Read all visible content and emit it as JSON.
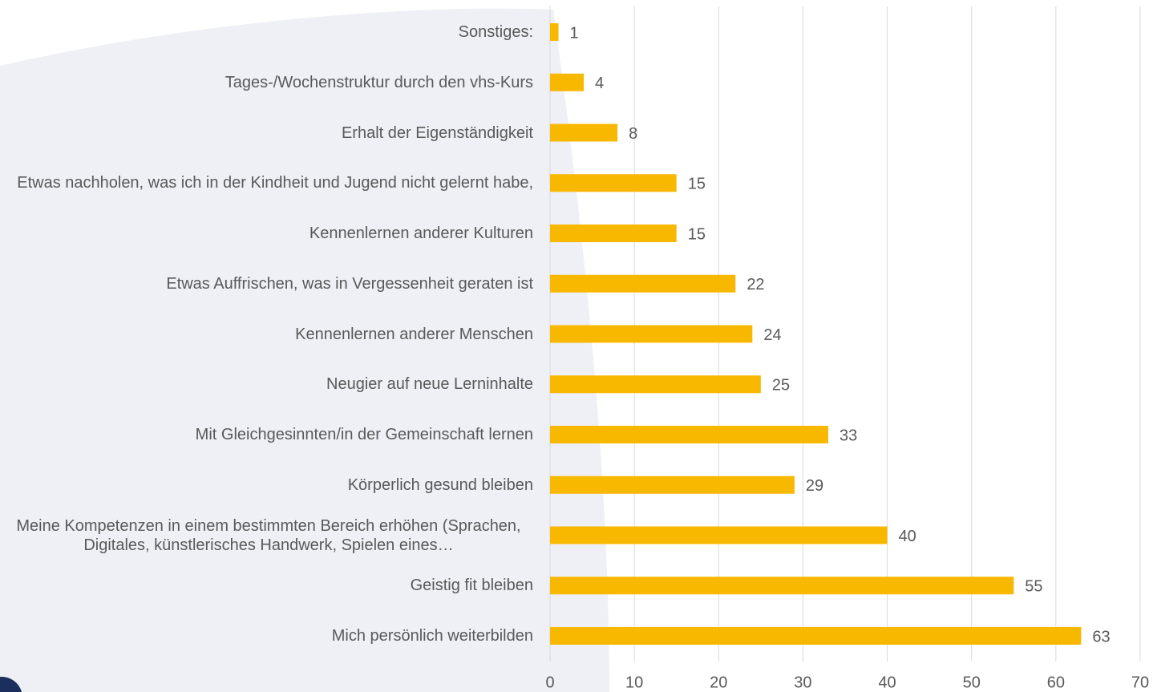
{
  "chart_data": {
    "type": "bar",
    "orientation": "horizontal",
    "categories": [
      "Sonstiges:",
      "Tages-/Wochenstruktur durch den vhs-Kurs",
      "Erhalt der Eigenständigkeit",
      "Etwas nachholen, was ich in der Kindheit und Jugend nicht gelernt habe,",
      "Kennenlernen anderer Kulturen",
      "Etwas Auffrischen, was in Vergessenheit geraten ist",
      "Kennenlernen anderer Menschen",
      "Neugier auf neue Lerninhalte",
      "Mit Gleichgesinnten/in der Gemeinschaft lernen",
      "Körperlich gesund bleiben",
      "Meine Kompetenzen in einem bestimmten Bereich erhöhen (Sprachen, Digitales, künstlerisches Handwerk, Spielen eines…",
      "Geistig fit bleiben",
      "Mich persönlich weiterbilden"
    ],
    "values": [
      1,
      4,
      8,
      15,
      15,
      22,
      24,
      25,
      33,
      29,
      40,
      55,
      63
    ],
    "color": "#f9b800",
    "xlim": [
      0,
      70
    ],
    "xticks": [
      0,
      10,
      20,
      30,
      40,
      50,
      60,
      70
    ],
    "grid": true
  }
}
